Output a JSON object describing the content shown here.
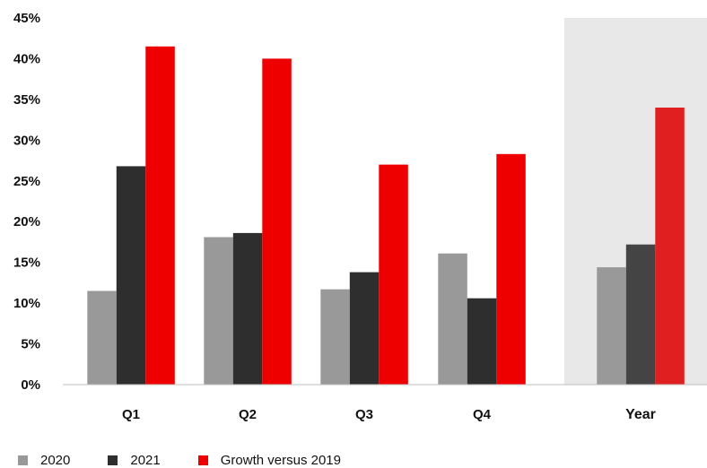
{
  "chart_data": {
    "type": "bar",
    "categories": [
      "Q1",
      "Q2",
      "Q3",
      "Q4",
      "Year"
    ],
    "highlighted_category": "Year",
    "series": [
      {
        "name": "2020",
        "color": "#999999",
        "values": [
          11.5,
          18.1,
          11.7,
          16.1,
          14.4
        ]
      },
      {
        "name": "2021",
        "color": "#2e2e2e",
        "values": [
          26.8,
          18.6,
          13.8,
          10.6,
          17.2
        ]
      },
      {
        "name": "Growth versus 2019",
        "color": "#ee0000",
        "values": [
          41.5,
          40.0,
          27.0,
          28.3,
          34.0
        ]
      }
    ],
    "year_colors": [
      "#999999",
      "#444444",
      "#e02020"
    ],
    "highlight_background": "#e8e8e8",
    "yticks": [
      "0%",
      "5%",
      "10%",
      "15%",
      "20%",
      "25%",
      "30%",
      "35%",
      "40%",
      "45%"
    ],
    "ylim": [
      0,
      45
    ],
    "grid": false,
    "legend_position": "bottom-left",
    "title": "",
    "xlabel": "",
    "ylabel": ""
  }
}
